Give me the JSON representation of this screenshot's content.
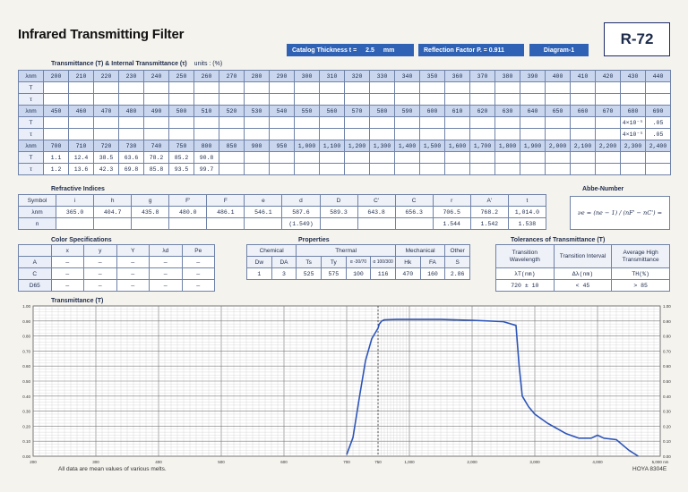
{
  "title": "Infrared Transmitting Filter",
  "catalog_thickness": {
    "label": "Catalog Thickness t =",
    "value": "2.5",
    "unit": "mm"
  },
  "reflection_factor": "Reflection Factor P. = 0.911",
  "diagram": "Diagram-1",
  "filter_code": "R-72",
  "transmittance_section": {
    "title": "Transmittance (T) & Internal Transmittance (τ)",
    "units": "units : (%)",
    "row_labels": {
      "wl": "λnm",
      "T": "T",
      "tau": "τ"
    },
    "blocks": [
      {
        "wl": [
          "200",
          "210",
          "220",
          "230",
          "240",
          "250",
          "260",
          "270",
          "280",
          "290",
          "300",
          "310",
          "320",
          "330",
          "340",
          "350",
          "360",
          "370",
          "380",
          "390",
          "400",
          "410",
          "420",
          "430",
          "440"
        ],
        "T": [
          "",
          "",
          "",
          "",
          "",
          "",
          "",
          "",
          "",
          "",
          "",
          "",
          "",
          "",
          "",
          "",
          "",
          "",
          "",
          "",
          "",
          "",
          "",
          "",
          ""
        ],
        "tau": [
          "",
          "",
          "",
          "",
          "",
          "",
          "",
          "",
          "",
          "",
          "",
          "",
          "",
          "",
          "",
          "",
          "",
          "",
          "",
          "",
          "",
          "",
          "",
          "",
          ""
        ]
      },
      {
        "wl": [
          "450",
          "460",
          "470",
          "480",
          "490",
          "500",
          "510",
          "520",
          "530",
          "540",
          "550",
          "560",
          "570",
          "580",
          "590",
          "600",
          "610",
          "620",
          "630",
          "640",
          "650",
          "660",
          "670",
          "680",
          "690"
        ],
        "T": [
          "",
          "",
          "",
          "",
          "",
          "",
          "",
          "",
          "",
          "",
          "",
          "",
          "",
          "",
          "",
          "",
          "",
          "",
          "",
          "",
          "",
          "",
          "",
          "4×10⁻⁵",
          ".05"
        ],
        "tau": [
          "",
          "",
          "",
          "",
          "",
          "",
          "",
          "",
          "",
          "",
          "",
          "",
          "",
          "",
          "",
          "",
          "",
          "",
          "",
          "",
          "",
          "",
          "",
          "4×10⁻⁵",
          ".05"
        ]
      },
      {
        "wl": [
          "700",
          "710",
          "720",
          "730",
          "740",
          "750",
          "800",
          "850",
          "900",
          "950",
          "1,000",
          "1,100",
          "1,200",
          "1,300",
          "1,400",
          "1,500",
          "1,600",
          "1,700",
          "1,800",
          "1,900",
          "2,000",
          "2,100",
          "2,200",
          "2,300",
          "2,400"
        ],
        "T": [
          "1.1",
          "12.4",
          "38.5",
          "63.6",
          "78.2",
          "85.2",
          "90.8",
          "",
          "",
          "",
          "",
          "",
          "",
          "",
          "",
          "",
          "",
          "",
          "",
          "",
          "",
          "",
          "",
          "",
          ""
        ],
        "tau": [
          "1.2",
          "13.6",
          "42.3",
          "69.8",
          "85.8",
          "93.5",
          "99.7",
          "",
          "",
          "",
          "",
          "",
          "",
          "",
          "",
          "",
          "",
          "",
          "",
          "",
          "",
          "",
          "",
          "",
          ""
        ]
      }
    ]
  },
  "refractive": {
    "title": "Refractive Indices",
    "headers": [
      "Symbol",
      "i",
      "h",
      "g",
      "F'",
      "F",
      "e",
      "d",
      "D",
      "C'",
      "C",
      "r",
      "A'",
      "t"
    ],
    "wl_label": "λnm",
    "wl": [
      "365.0",
      "404.7",
      "435.8",
      "480.0",
      "486.1",
      "546.1",
      "587.6",
      "589.3",
      "643.8",
      "656.3",
      "706.5",
      "768.2",
      "1,014.0"
    ],
    "n_label": "n",
    "n": [
      "",
      "",
      "",
      "",
      "",
      "",
      "(1.549)",
      "",
      "",
      "",
      "1.544",
      "1.542",
      "1.538"
    ]
  },
  "abbe": {
    "title": "Abbe-Number",
    "formula": "νe = (ne − 1) / (nF' − nC') ="
  },
  "color": {
    "title": "Color Specifications",
    "headers": [
      "",
      "x",
      "y",
      "Y",
      "λd",
      "Pe"
    ],
    "rows": [
      [
        "A",
        "—",
        "—",
        "—",
        "—",
        "—"
      ],
      [
        "C",
        "—",
        "—",
        "—",
        "—",
        "—"
      ],
      [
        "D65",
        "—",
        "—",
        "—",
        "—",
        "—"
      ]
    ]
  },
  "properties": {
    "title": "Properties",
    "groups": [
      "Chemical",
      "Thermal",
      "Mechanical",
      "Other"
    ],
    "headers": [
      "Dw",
      "DA",
      "Ts",
      "Ty",
      "α -30/70",
      "α 100/300",
      "Hk",
      "FA",
      "S"
    ],
    "values": [
      "1",
      "3",
      "525",
      "575",
      "100",
      "116",
      "470",
      "160",
      "2.86"
    ]
  },
  "tolerances": {
    "title": "Tolerances of Transmittance (T)",
    "headers": [
      "Transition Wavelength",
      "Transition Interval",
      "Average High Transmittance"
    ],
    "units": [
      "λT(nm)",
      "Δλ(nm)",
      "TH(%)"
    ],
    "values": [
      "720 ± 10",
      "< 45",
      "> 85"
    ]
  },
  "chart_data": {
    "type": "line",
    "title": "Transmittance (T)",
    "x_ticks": [
      "200",
      "300",
      "400",
      "500",
      "600",
      "700",
      "750",
      "1,000",
      "2,000",
      "3,000",
      "4,000",
      "5,000 nm"
    ],
    "y_ticks": [
      "0.00",
      "0.10",
      "0.20",
      "0.30",
      "0.40",
      "0.50",
      "0.60",
      "0.70",
      "0.80",
      "0.90",
      "1.00"
    ],
    "ylim": [
      0,
      1
    ],
    "series": [
      {
        "points": [
          [
            700,
            0.011
          ],
          [
            710,
            0.124
          ],
          [
            720,
            0.385
          ],
          [
            730,
            0.636
          ],
          [
            740,
            0.782
          ],
          [
            750,
            0.852
          ],
          [
            760,
            0.88
          ],
          [
            780,
            0.9
          ],
          [
            800,
            0.908
          ],
          [
            900,
            0.91
          ],
          [
            1000,
            0.91
          ],
          [
            1500,
            0.91
          ],
          [
            2000,
            0.905
          ],
          [
            2500,
            0.895
          ],
          [
            2700,
            0.87
          ],
          [
            2750,
            0.6
          ],
          [
            2800,
            0.4
          ],
          [
            2900,
            0.33
          ],
          [
            3000,
            0.28
          ],
          [
            3200,
            0.22
          ],
          [
            3500,
            0.15
          ],
          [
            3700,
            0.12
          ],
          [
            3900,
            0.12
          ],
          [
            4000,
            0.14
          ],
          [
            4100,
            0.12
          ],
          [
            4300,
            0.11
          ],
          [
            4500,
            0.04
          ],
          [
            4650,
            0.0
          ]
        ]
      }
    ],
    "grid": true
  },
  "footer": {
    "note": "All data are mean values of various melts.",
    "code": "HOYA 8304E"
  }
}
